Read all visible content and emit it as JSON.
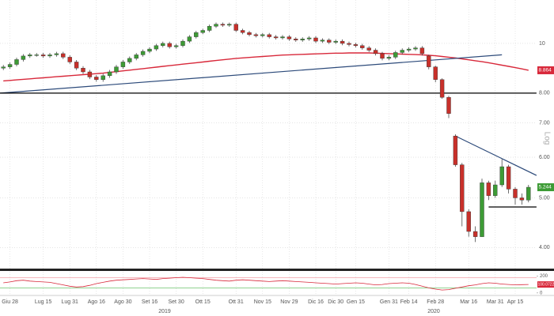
{
  "chart_data": {
    "type": "candlestick",
    "log": true,
    "grid": true,
    "scale_label": "Log",
    "up_color": "#3d9b35",
    "down_color": "#c8302a",
    "categories": [
      null,
      "Giu 28",
      null,
      null,
      null,
      null,
      "Lug 15",
      null,
      null,
      null,
      "Lug 31",
      null,
      null,
      null,
      "Ago 16",
      null,
      null,
      null,
      "Ago 30",
      null,
      null,
      null,
      "Set 16",
      null,
      null,
      null,
      "Set 30",
      null,
      null,
      null,
      "Ott 15",
      null,
      null,
      null,
      null,
      "Ott 31",
      null,
      null,
      null,
      "Nov 15",
      null,
      null,
      null,
      "Nov 29",
      null,
      null,
      null,
      "Dic 16",
      null,
      null,
      "Dic 30",
      null,
      null,
      "Gen 15",
      null,
      null,
      null,
      null,
      "Gen 31",
      null,
      null,
      "Feb 14",
      null,
      null,
      null,
      "Feb 28",
      null,
      null,
      null,
      null,
      "Mar 16",
      null,
      null,
      null,
      "Mar 31",
      null,
      null,
      "Apr 15",
      null,
      null
    ],
    "year_labels": [
      "2019",
      "2020"
    ],
    "ohlc": [
      [
        8.95,
        9.08,
        8.87,
        9.0
      ],
      [
        9.0,
        9.18,
        8.92,
        9.1
      ],
      [
        9.1,
        9.38,
        9.02,
        9.3
      ],
      [
        9.3,
        9.53,
        9.22,
        9.45
      ],
      [
        9.45,
        9.58,
        9.37,
        9.5
      ],
      [
        9.5,
        9.58,
        9.42,
        9.5
      ],
      [
        9.5,
        9.58,
        9.37,
        9.45
      ],
      [
        9.45,
        9.58,
        9.37,
        9.5
      ],
      [
        9.5,
        9.63,
        9.42,
        9.55
      ],
      [
        9.55,
        9.63,
        9.32,
        9.4
      ],
      [
        9.4,
        9.48,
        9.12,
        9.2
      ],
      [
        9.2,
        9.28,
        8.87,
        8.95
      ],
      [
        8.95,
        9.03,
        8.72,
        8.8
      ],
      [
        8.8,
        8.88,
        8.52,
        8.6
      ],
      [
        8.6,
        8.68,
        8.42,
        8.5
      ],
      [
        8.5,
        8.73,
        8.42,
        8.65
      ],
      [
        8.65,
        8.88,
        8.57,
        8.8
      ],
      [
        8.8,
        9.08,
        8.72,
        9.0
      ],
      [
        9.0,
        9.28,
        8.92,
        9.2
      ],
      [
        9.2,
        9.43,
        9.12,
        9.35
      ],
      [
        9.35,
        9.58,
        9.27,
        9.5
      ],
      [
        9.5,
        9.73,
        9.42,
        9.65
      ],
      [
        9.65,
        9.83,
        9.57,
        9.75
      ],
      [
        9.75,
        9.98,
        9.67,
        9.9
      ],
      [
        9.9,
        10.08,
        9.82,
        10.0
      ],
      [
        10.0,
        10.08,
        9.77,
        9.85
      ],
      [
        9.85,
        9.98,
        9.77,
        9.9
      ],
      [
        9.9,
        10.18,
        9.82,
        10.1
      ],
      [
        10.1,
        10.38,
        10.02,
        10.3
      ],
      [
        10.3,
        10.58,
        10.22,
        10.5
      ],
      [
        10.5,
        10.68,
        10.42,
        10.6
      ],
      [
        10.6,
        10.88,
        10.52,
        10.8
      ],
      [
        10.8,
        10.98,
        10.72,
        10.9
      ],
      [
        10.9,
        10.98,
        10.77,
        10.85
      ],
      [
        10.85,
        10.98,
        10.77,
        10.9
      ],
      [
        10.9,
        10.98,
        10.52,
        10.6
      ],
      [
        10.6,
        10.68,
        10.42,
        10.5
      ],
      [
        10.5,
        10.58,
        10.32,
        10.4
      ],
      [
        10.4,
        10.48,
        10.27,
        10.35
      ],
      [
        10.35,
        10.48,
        10.27,
        10.4
      ],
      [
        10.4,
        10.48,
        10.22,
        10.3
      ],
      [
        10.3,
        10.38,
        10.17,
        10.25
      ],
      [
        10.25,
        10.38,
        10.17,
        10.3
      ],
      [
        10.3,
        10.38,
        10.12,
        10.2
      ],
      [
        10.2,
        10.28,
        10.07,
        10.15
      ],
      [
        10.15,
        10.28,
        10.07,
        10.2
      ],
      [
        10.2,
        10.33,
        10.12,
        10.25
      ],
      [
        10.25,
        10.33,
        10.02,
        10.1
      ],
      [
        10.1,
        10.23,
        10.02,
        10.15
      ],
      [
        10.15,
        10.23,
        9.97,
        10.05
      ],
      [
        10.05,
        10.18,
        9.97,
        10.1
      ],
      [
        10.1,
        10.18,
        9.92,
        10.0
      ],
      [
        10.0,
        10.08,
        9.87,
        9.95
      ],
      [
        9.95,
        10.03,
        9.82,
        9.9
      ],
      [
        9.9,
        9.98,
        9.72,
        9.8
      ],
      [
        9.8,
        9.88,
        9.62,
        9.7
      ],
      [
        9.7,
        9.78,
        9.47,
        9.55
      ],
      [
        9.55,
        9.63,
        9.27,
        9.35
      ],
      [
        9.35,
        9.48,
        9.27,
        9.4
      ],
      [
        9.4,
        9.68,
        9.32,
        9.6
      ],
      [
        9.6,
        9.78,
        9.52,
        9.7
      ],
      [
        9.7,
        9.83,
        9.62,
        9.75
      ],
      [
        9.75,
        9.88,
        9.67,
        9.8
      ],
      [
        9.8,
        9.88,
        9.47,
        9.55
      ],
      [
        9.45,
        9.5,
        8.9,
        9.0
      ],
      [
        9.0,
        9.05,
        8.4,
        8.5
      ],
      [
        8.5,
        8.55,
        7.8,
        7.85
      ],
      [
        7.85,
        7.9,
        7.15,
        7.3
      ],
      [
        6.6,
        6.65,
        5.75,
        5.8
      ],
      [
        5.8,
        5.85,
        4.4,
        4.7
      ],
      [
        4.7,
        4.75,
        4.2,
        4.3
      ],
      [
        4.3,
        4.4,
        4.1,
        4.2
      ],
      [
        4.2,
        5.45,
        4.2,
        5.35
      ],
      [
        5.35,
        5.4,
        4.95,
        5.05
      ],
      [
        5.05,
        5.4,
        5.0,
        5.3
      ],
      [
        5.3,
        5.95,
        5.25,
        5.75
      ],
      [
        5.75,
        5.8,
        5.1,
        5.2
      ],
      [
        5.2,
        5.25,
        4.85,
        5.0
      ],
      [
        5.0,
        5.1,
        4.85,
        4.95
      ],
      [
        4.95,
        5.3,
        4.9,
        5.244
      ]
    ],
    "last_label": "5.244",
    "ma": {
      "color": "#d8283a",
      "value_label": "8.864",
      "values": [
        8.45,
        8.47,
        8.49,
        8.51,
        8.53,
        8.55,
        8.57,
        8.59,
        8.61,
        8.63,
        8.65,
        8.67,
        8.69,
        8.71,
        8.73,
        8.75,
        8.78,
        8.81,
        8.84,
        8.87,
        8.9,
        8.93,
        8.96,
        8.99,
        9.02,
        9.05,
        9.08,
        9.11,
        9.14,
        9.17,
        9.2,
        9.23,
        9.26,
        9.29,
        9.32,
        9.35,
        9.37,
        9.39,
        9.41,
        9.43,
        9.45,
        9.47,
        9.49,
        9.5,
        9.51,
        9.52,
        9.53,
        9.54,
        9.55,
        9.56,
        9.57,
        9.57,
        9.58,
        9.58,
        9.58,
        9.58,
        9.57,
        9.56,
        9.55,
        9.54,
        9.53,
        9.52,
        9.51,
        9.5,
        9.48,
        9.46,
        9.43,
        9.4,
        9.37,
        9.33,
        9.29,
        9.25,
        9.21,
        9.17,
        9.12,
        9.07,
        9.02,
        8.97,
        8.92,
        8.864
      ]
    },
    "trend_lines": [
      {
        "color": "#2c4a7a",
        "x": [
          -0.5,
          75
        ],
        "y": [
          8.0,
          9.5
        ]
      },
      {
        "color": "#000000",
        "x": [
          -0.5,
          80.2
        ],
        "y": [
          8.0,
          8.0
        ]
      },
      {
        "color": "#2c4a7a",
        "x": [
          68,
          80.2
        ],
        "y": [
          6.6,
          5.53
        ]
      },
      {
        "color": "#000000",
        "x": [
          73,
          80.2
        ],
        "y": [
          4.8,
          4.8
        ]
      }
    ],
    "ylim": [
      3.64,
      12.15
    ],
    "yticks": [
      {
        "value": 4,
        "label": "4.00"
      },
      {
        "value": 5,
        "label": "5.00"
      },
      {
        "value": 6,
        "label": "6.00"
      },
      {
        "value": 7,
        "label": "7.00"
      },
      {
        "value": 8,
        "label": "8.00"
      },
      10
    ],
    "indicator": {
      "color": "#d8283a",
      "value_label": "100.0722",
      "values": [
        120,
        130,
        145,
        150,
        140,
        135,
        130,
        125,
        110,
        95,
        80,
        70,
        75,
        90,
        110,
        125,
        140,
        150,
        155,
        160,
        165,
        170,
        165,
        160,
        170,
        175,
        180,
        185,
        180,
        175,
        170,
        160,
        150,
        145,
        140,
        150,
        155,
        150,
        145,
        140,
        135,
        140,
        145,
        140,
        135,
        130,
        125,
        120,
        115,
        110,
        105,
        110,
        115,
        120,
        115,
        105,
        95,
        100,
        110,
        115,
        120,
        115,
        100,
        80,
        60,
        45,
        35,
        40,
        55,
        70,
        85,
        95,
        110,
        120,
        115,
        105,
        100,
        95,
        98,
        100.0722
      ],
      "levels": [
        {
          "value": 180,
          "color": "#f2a0a8"
        },
        {
          "value": 60,
          "color": "#6cc36c"
        }
      ],
      "ylim": [
        -20,
        250
      ],
      "yticks": [
        0,
        200
      ]
    }
  }
}
